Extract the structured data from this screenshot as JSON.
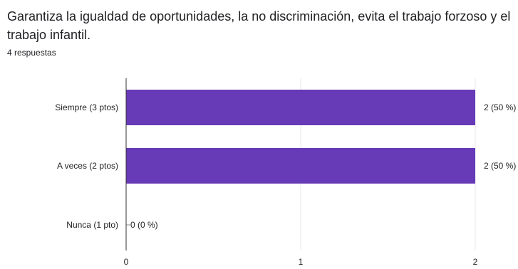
{
  "question": {
    "title": "Garantiza la igualdad de oportunidades, la no discriminación, evita el trabajo forzoso y el trabajo infantil.",
    "responses": "4 respuestas"
  },
  "colors": {
    "bar": "#673ab7",
    "grid": "#e8e8e8",
    "axis": "#333333"
  },
  "chart_data": {
    "type": "bar",
    "orientation": "horizontal",
    "categories": [
      "Siempre (3 ptos)",
      "A veces (2 ptos)",
      "Nunca (1 pto)"
    ],
    "values": [
      2,
      2,
      0
    ],
    "value_labels": [
      "2 (50 %)",
      "2 (50 %)",
      "0 (0 %)"
    ],
    "x_ticks": [
      0,
      1,
      2
    ],
    "xlim": [
      0,
      2
    ],
    "grid": true
  }
}
